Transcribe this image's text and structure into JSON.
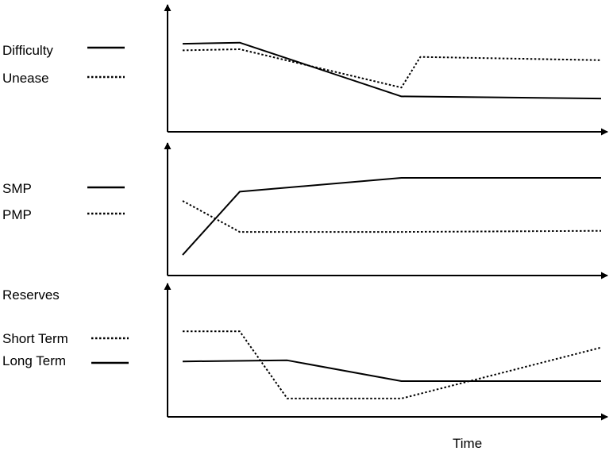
{
  "chart_data": [
    {
      "type": "line",
      "xlabel": "",
      "ylabel": "",
      "grid": false,
      "legend_position": "left",
      "x": [
        0,
        3,
        12,
        22
      ],
      "series": [
        {
          "name": "Difficulty",
          "style": "solid",
          "points": [
            [
              0,
              7.6
            ],
            [
              3,
              7.7
            ],
            [
              11.5,
              2.8
            ],
            [
              22,
              2.6
            ]
          ]
        },
        {
          "name": "Unease",
          "style": "dotted",
          "points": [
            [
              0,
              7.0
            ],
            [
              3,
              7.1
            ],
            [
              11.5,
              3.6
            ],
            [
              12.5,
              6.4
            ],
            [
              22,
              6.1
            ]
          ]
        }
      ]
    },
    {
      "type": "line",
      "xlabel": "",
      "ylabel": "",
      "grid": false,
      "legend_position": "left",
      "series": [
        {
          "name": "SMP",
          "style": "solid",
          "points": [
            [
              0,
              1.3
            ],
            [
              3,
              6.8
            ],
            [
              11.5,
              8.0
            ],
            [
              22,
              8.0
            ]
          ]
        },
        {
          "name": "PMP",
          "style": "dotted",
          "points": [
            [
              0,
              6.0
            ],
            [
              3,
              3.3
            ],
            [
              11.5,
              3.3
            ],
            [
              22,
              3.4
            ]
          ]
        }
      ]
    },
    {
      "type": "line",
      "title": "Reserves",
      "xlabel": "Time",
      "ylabel": "",
      "grid": false,
      "legend_position": "left",
      "series": [
        {
          "name": "Short Term",
          "style": "dotted",
          "points": [
            [
              0,
              6.9
            ],
            [
              3,
              6.9
            ],
            [
              5.5,
              1.1
            ],
            [
              11.5,
              1.1
            ],
            [
              22,
              5.5
            ]
          ]
        },
        {
          "name": "Long Term",
          "style": "solid",
          "points": [
            [
              0,
              4.3
            ],
            [
              5.5,
              4.4
            ],
            [
              11.5,
              2.6
            ],
            [
              22,
              2.6
            ]
          ]
        }
      ]
    }
  ]
}
